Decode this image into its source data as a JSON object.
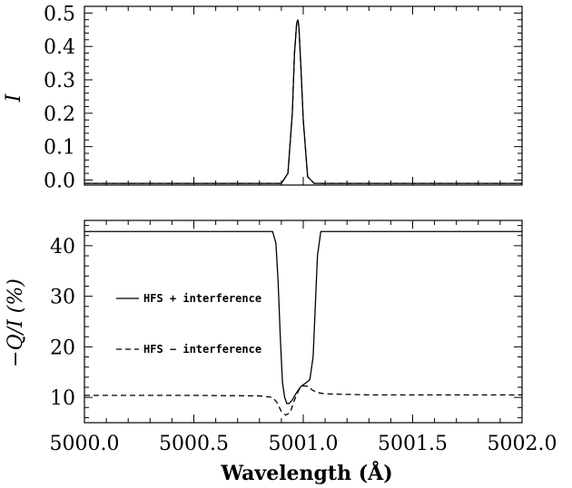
{
  "chart_data": [
    {
      "type": "line",
      "ylabel": "I",
      "xlim": [
        5000.0,
        5002.0
      ],
      "ylim": [
        -0.015,
        0.52
      ],
      "y_ticks": [
        "0.0",
        "0.1",
        "0.2",
        "0.3",
        "0.4",
        "0.5"
      ],
      "x_tick_labels_shown": false,
      "series": [
        {
          "style": "solid",
          "x": [
            5000.0,
            5000.9,
            5000.93,
            5000.95,
            5000.96,
            5000.97,
            5000.975,
            5000.98,
            5000.99,
            5001.0,
            5001.02,
            5001.05,
            5002.0
          ],
          "y": [
            -0.01,
            -0.01,
            0.02,
            0.2,
            0.38,
            0.47,
            0.48,
            0.46,
            0.33,
            0.18,
            0.01,
            -0.01,
            -0.01
          ]
        },
        {
          "style": "dashed",
          "x": [
            5000.0,
            5000.9,
            5000.93,
            5000.95,
            5000.96,
            5000.97,
            5000.975,
            5000.98,
            5000.99,
            5001.0,
            5001.02,
            5001.05,
            5002.0
          ],
          "y": [
            -0.01,
            -0.01,
            0.02,
            0.2,
            0.38,
            0.47,
            0.48,
            0.46,
            0.33,
            0.18,
            0.01,
            -0.01,
            -0.01
          ]
        }
      ]
    },
    {
      "type": "line",
      "ylabel": "−Q/I (%)",
      "xlabel": "Wavelength (Å)",
      "xlim": [
        5000.0,
        5002.0
      ],
      "ylim": [
        5,
        45
      ],
      "x_ticks": [
        "5000.0",
        "5000.5",
        "5001.0",
        "5001.5",
        "5002.0"
      ],
      "y_ticks": [
        "10",
        "20",
        "30",
        "40"
      ],
      "series": [
        {
          "name": "HFS + interference",
          "style": "solid",
          "x": [
            5000.0,
            5000.86,
            5000.875,
            5000.885,
            5000.895,
            5000.905,
            5000.915,
            5000.925,
            5000.935,
            5000.95,
            5000.97,
            5000.99,
            5001.01,
            5001.03,
            5001.045,
            5001.055,
            5001.065,
            5001.08,
            5002.0
          ],
          "y": [
            42.8,
            42.8,
            40.5,
            33.0,
            22.0,
            13.0,
            10.0,
            8.8,
            8.8,
            9.5,
            11.0,
            12.2,
            12.8,
            13.5,
            18.0,
            28.0,
            38.0,
            42.8,
            42.8
          ]
        },
        {
          "name": "HFS − interference",
          "style": "dashed",
          "x": [
            5000.0,
            5000.5,
            5000.8,
            5000.86,
            5000.88,
            5000.9,
            5000.92,
            5000.94,
            5000.96,
            5000.98,
            5001.0,
            5001.02,
            5001.04,
            5001.06,
            5001.1,
            5001.3,
            5001.6,
            5002.0
          ],
          "y": [
            10.4,
            10.4,
            10.3,
            10.0,
            9.0,
            7.2,
            6.5,
            7.0,
            9.5,
            11.5,
            12.3,
            12.2,
            11.5,
            11.0,
            10.7,
            10.5,
            10.5,
            10.5
          ]
        }
      ]
    }
  ]
}
